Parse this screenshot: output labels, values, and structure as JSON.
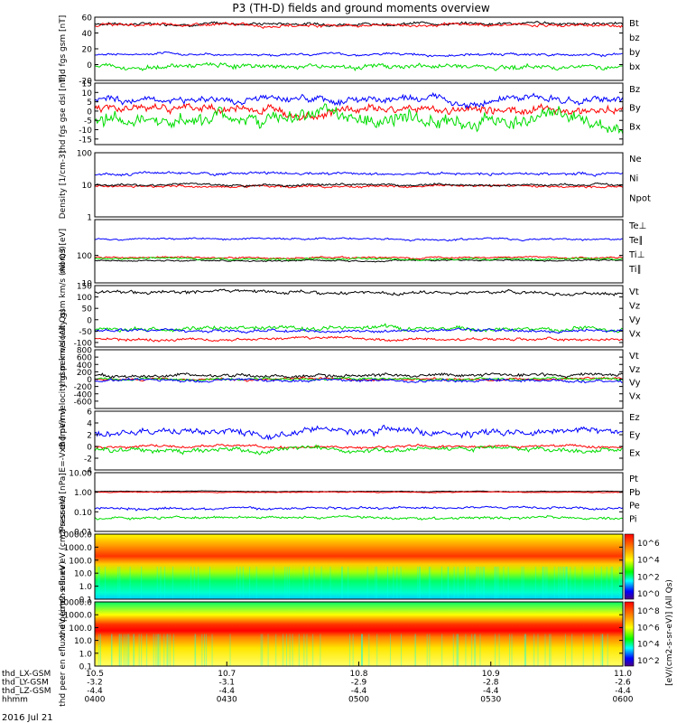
{
  "title": "P3 (TH-D) fields and ground moments overview",
  "date_label": "2016 Jul 21",
  "colors": {
    "black": "#000000",
    "red": "#ff0000",
    "green": "#00dd00",
    "blue": "#0000ff"
  },
  "orbit_rows": [
    {
      "label": "thd_LX-GSM",
      "values": [
        "10.5",
        "10.7",
        "10.8",
        "10.9",
        "11.0"
      ]
    },
    {
      "label": "thd_LY-GSM",
      "values": [
        "-3.2",
        "-3.1",
        "-2.9",
        "-2.8",
        "-2.6"
      ]
    },
    {
      "label": "thd_LZ-GSM",
      "values": [
        "-4.4",
        "-4.4",
        "-4.4",
        "-4.4",
        "-4.4"
      ]
    },
    {
      "label": "hhmm",
      "values": [
        "0400",
        "0430",
        "0500",
        "0530",
        "0600"
      ]
    }
  ],
  "chart_data": [
    {
      "type": "line",
      "ylabel": "thd fgs gsm [nT]",
      "ylim": [
        -20,
        60
      ],
      "yticks": [
        "60",
        "40",
        "20",
        "0",
        "-20"
      ],
      "series": [
        {
          "name": "Bt",
          "color": "black",
          "level": 52,
          "noise": 2.5
        },
        {
          "name": "bz",
          "color": "red",
          "level": 50,
          "noise": 2.5
        },
        {
          "name": "by",
          "color": "green",
          "level": -2,
          "noise": 4
        },
        {
          "name": "bx",
          "color": "blue",
          "level": 13,
          "noise": 2
        }
      ]
    },
    {
      "type": "line",
      "ylabel": "thd fgs gse dsl [nT]",
      "ylim": [
        -18,
        15
      ],
      "yticks": [
        "15",
        "10",
        "5",
        "0",
        "-5",
        "-10",
        "-15"
      ],
      "series": [
        {
          "name": "Bz",
          "color": "red",
          "level": 1,
          "noise": 3
        },
        {
          "name": "By",
          "color": "green",
          "level": -4,
          "noise": 5
        },
        {
          "name": "Bx",
          "color": "blue",
          "level": 6,
          "noise": 2.5
        }
      ]
    },
    {
      "type": "line",
      "ylabel": "Density [1/cm-3]",
      "ylim": [
        1,
        100
      ],
      "yticks": [
        "100",
        "10",
        "1"
      ],
      "scale": "log",
      "series": [
        {
          "name": "Ne",
          "color": "red",
          "level": 9,
          "noise": 1
        },
        {
          "name": "Ni",
          "color": "black",
          "level": 10,
          "noise": 1
        },
        {
          "name": "Npot",
          "color": "blue",
          "level": 22,
          "noise": 3
        }
      ]
    },
    {
      "type": "line",
      "ylabel": "mom3 [eV]",
      "ylim": [
        10,
        2000
      ],
      "yticks": [
        "100",
        "10"
      ],
      "scale": "log",
      "series": [
        {
          "name": "Te⊥",
          "color": "red",
          "level": 85,
          "noise": 8
        },
        {
          "name": "Te∥",
          "color": "black",
          "level": 65,
          "noise": 5
        },
        {
          "name": "Ti⊥",
          "color": "blue",
          "level": 400,
          "noise": 40
        },
        {
          "name": "Ti∥",
          "color": "green",
          "level": 75,
          "noise": 8
        }
      ]
    },
    {
      "type": "line",
      "ylabel": "thd peir velocity gsm km/s (All Qs)",
      "ylim": [
        -120,
        150
      ],
      "yticks": [
        "150",
        "100",
        "50",
        "0",
        "-50",
        "-100"
      ],
      "series": [
        {
          "name": "Vt",
          "color": "black",
          "level": 120,
          "noise": 10
        },
        {
          "name": "Vz",
          "color": "red",
          "level": -85,
          "noise": 8
        },
        {
          "name": "Vy",
          "color": "green",
          "level": -40,
          "noise": 12
        },
        {
          "name": "Vx",
          "color": "blue",
          "level": -48,
          "noise": 8
        }
      ]
    },
    {
      "type": "line",
      "ylabel": "thd peir velocity gsm km/s (All Qs)",
      "ylim": [
        -800,
        800
      ],
      "yticks": [
        "800",
        "600",
        "400",
        "200",
        "0",
        "-200",
        "-400",
        "-600"
      ],
      "series": [
        {
          "name": "Vt",
          "color": "black",
          "level": 100,
          "noise": 60
        },
        {
          "name": "Vz",
          "color": "red",
          "level": 0,
          "noise": 40
        },
        {
          "name": "Vy",
          "color": "green",
          "level": 0,
          "noise": 40
        },
        {
          "name": "Vx",
          "color": "blue",
          "level": -40,
          "noise": 50
        }
      ]
    },
    {
      "type": "line",
      "ylabel": "E=-VxB [mV/m]",
      "ylim": [
        -4,
        6
      ],
      "yticks": [
        "6",
        "4",
        "2",
        "0",
        "-2",
        "-4"
      ],
      "series": [
        {
          "name": "Ez",
          "color": "red",
          "level": 0,
          "noise": 0.3
        },
        {
          "name": "Ey",
          "color": "green",
          "level": -0.5,
          "noise": 0.5
        },
        {
          "name": "Ex",
          "color": "blue",
          "level": 2.5,
          "noise": 0.8
        }
      ]
    },
    {
      "type": "line",
      "ylabel": "Pressure [nPa]",
      "ylim": [
        0.01,
        10
      ],
      "yticks": [
        "10.00",
        "1.00",
        "0.10",
        "0.01"
      ],
      "scale": "log",
      "series": [
        {
          "name": "Pt",
          "color": "black",
          "level": 1.1,
          "noise": 0.05
        },
        {
          "name": "Pb",
          "color": "red",
          "level": 1.0,
          "noise": 0.05
        },
        {
          "name": "Pe",
          "color": "green",
          "level": 0.05,
          "noise": 0.01
        },
        {
          "name": "Pi",
          "color": "blue",
          "level": 0.15,
          "noise": 0.03
        }
      ]
    },
    {
      "type": "heatmap",
      "ylabel": "thd peir en efluxv eV (cm2-s-sr-eV)",
      "ylim": [
        0.1,
        10000
      ],
      "yticks": [
        "10000.0",
        "1000.0",
        "100.0",
        "10.0",
        "1.0",
        "0.1"
      ],
      "scale": "log",
      "colorbar": {
        "ticks": [
          "10^6",
          "10^4",
          "10^2",
          "10^0"
        ]
      }
    },
    {
      "type": "heatmap",
      "ylabel": "thd peer en efluxv eV (cm2-s-sr-eV)",
      "ylim": [
        0.1,
        10000
      ],
      "yticks": [
        "10000.0",
        "1000.0",
        "100.0",
        "10.0",
        "1.0",
        "0.1"
      ],
      "scale": "log",
      "colorbar": {
        "ticks": [
          "10^8",
          "10^6",
          "10^4",
          "10^2"
        ]
      }
    }
  ],
  "colorbar_label": "[eV/(cm2-s-sr-eV)] (All Qs)"
}
